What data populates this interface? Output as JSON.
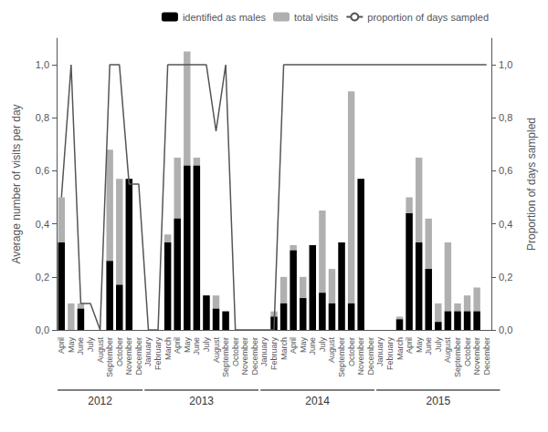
{
  "chart_data": {
    "type": "bar",
    "categories": [
      "April",
      "May",
      "June",
      "July",
      "August",
      "September",
      "October",
      "November",
      "December",
      "January",
      "February",
      "March",
      "April",
      "May",
      "June",
      "July",
      "August",
      "September",
      "October",
      "November",
      "December",
      "January",
      "February",
      "March",
      "April",
      "May",
      "June",
      "July",
      "August",
      "September",
      "October",
      "November",
      "December",
      "January",
      "February",
      "March",
      "April",
      "May",
      "June",
      "July",
      "August",
      "September",
      "October",
      "November",
      "December"
    ],
    "series": [
      {
        "name": "identified as males",
        "type": "bar",
        "color": "#000000",
        "values": [
          0.33,
          0.0,
          0.08,
          0.0,
          0.0,
          0.26,
          0.17,
          0.57,
          0.0,
          0.0,
          0.0,
          0.33,
          0.42,
          0.62,
          0.62,
          0.13,
          0.08,
          0.07,
          0.0,
          0.0,
          0.0,
          0.0,
          0.05,
          0.1,
          0.3,
          0.12,
          0.32,
          0.14,
          0.1,
          0.33,
          0.1,
          0.57,
          0.0,
          0.0,
          0.0,
          0.04,
          0.44,
          0.33,
          0.23,
          0.03,
          0.07,
          0.07,
          0.07,
          0.07,
          0.0
        ]
      },
      {
        "name": "total visits",
        "type": "bar",
        "color": "#b0b0b0",
        "values": [
          0.5,
          0.1,
          0.1,
          0.0,
          0.0,
          0.68,
          0.57,
          0.57,
          0.0,
          0.0,
          0.0,
          0.36,
          0.65,
          1.05,
          0.65,
          0.13,
          0.13,
          0.07,
          0.0,
          0.0,
          0.0,
          0.0,
          0.07,
          0.2,
          0.32,
          0.2,
          0.32,
          0.45,
          0.23,
          0.33,
          0.9,
          0.57,
          0.0,
          0.0,
          0.0,
          0.05,
          0.5,
          0.65,
          0.42,
          0.1,
          0.33,
          0.1,
          0.13,
          0.16,
          0.0
        ]
      },
      {
        "name": "proportion of days sampled",
        "type": "line",
        "color": "#555555",
        "axis": "y2",
        "values": [
          0.5,
          1.0,
          0.1,
          0.1,
          0.0,
          1.0,
          1.0,
          0.55,
          0.55,
          0.0,
          0.0,
          1.0,
          1.0,
          1.0,
          1.0,
          1.0,
          0.75,
          1.0,
          0.0,
          0.0,
          0.0,
          0.0,
          0.0,
          1.0,
          1.0,
          1.0,
          1.0,
          1.0,
          1.0,
          1.0,
          1.0,
          1.0,
          1.0,
          1.0,
          1.0,
          1.0,
          1.0,
          1.0,
          1.0,
          1.0,
          1.0,
          1.0,
          1.0,
          1.0,
          1.0
        ]
      }
    ],
    "ylabel": "Average number of visits per day",
    "y2label": "Proportion of days sampled",
    "ylim": [
      0,
      1.1
    ],
    "yticks": [
      {
        "value": 0.0,
        "label": "0,0"
      },
      {
        "value": 0.2,
        "label": "0,2"
      },
      {
        "value": 0.4,
        "label": "0,4"
      },
      {
        "value": 0.6,
        "label": "0,6"
      },
      {
        "value": 0.8,
        "label": "0,8"
      },
      {
        "value": 1.0,
        "label": "1,0"
      }
    ],
    "y2lim": [
      0,
      1.1
    ],
    "y2ticks": [
      {
        "value": 0.0,
        "label": "0,0"
      },
      {
        "value": 0.2,
        "label": "0,2"
      },
      {
        "value": 0.4,
        "label": "0,4"
      },
      {
        "value": 0.6,
        "label": "0,6"
      },
      {
        "value": 0.8,
        "label": "0,8"
      },
      {
        "value": 1.0,
        "label": "1,0"
      }
    ],
    "annotations": [
      {
        "text": "2012",
        "start": 0,
        "end": 8
      },
      {
        "text": "2013",
        "start": 9,
        "end": 20
      },
      {
        "text": "2014",
        "start": 21,
        "end": 32
      },
      {
        "text": "2015",
        "start": 33,
        "end": 45
      }
    ],
    "legend": "upper right",
    "grid": false
  }
}
